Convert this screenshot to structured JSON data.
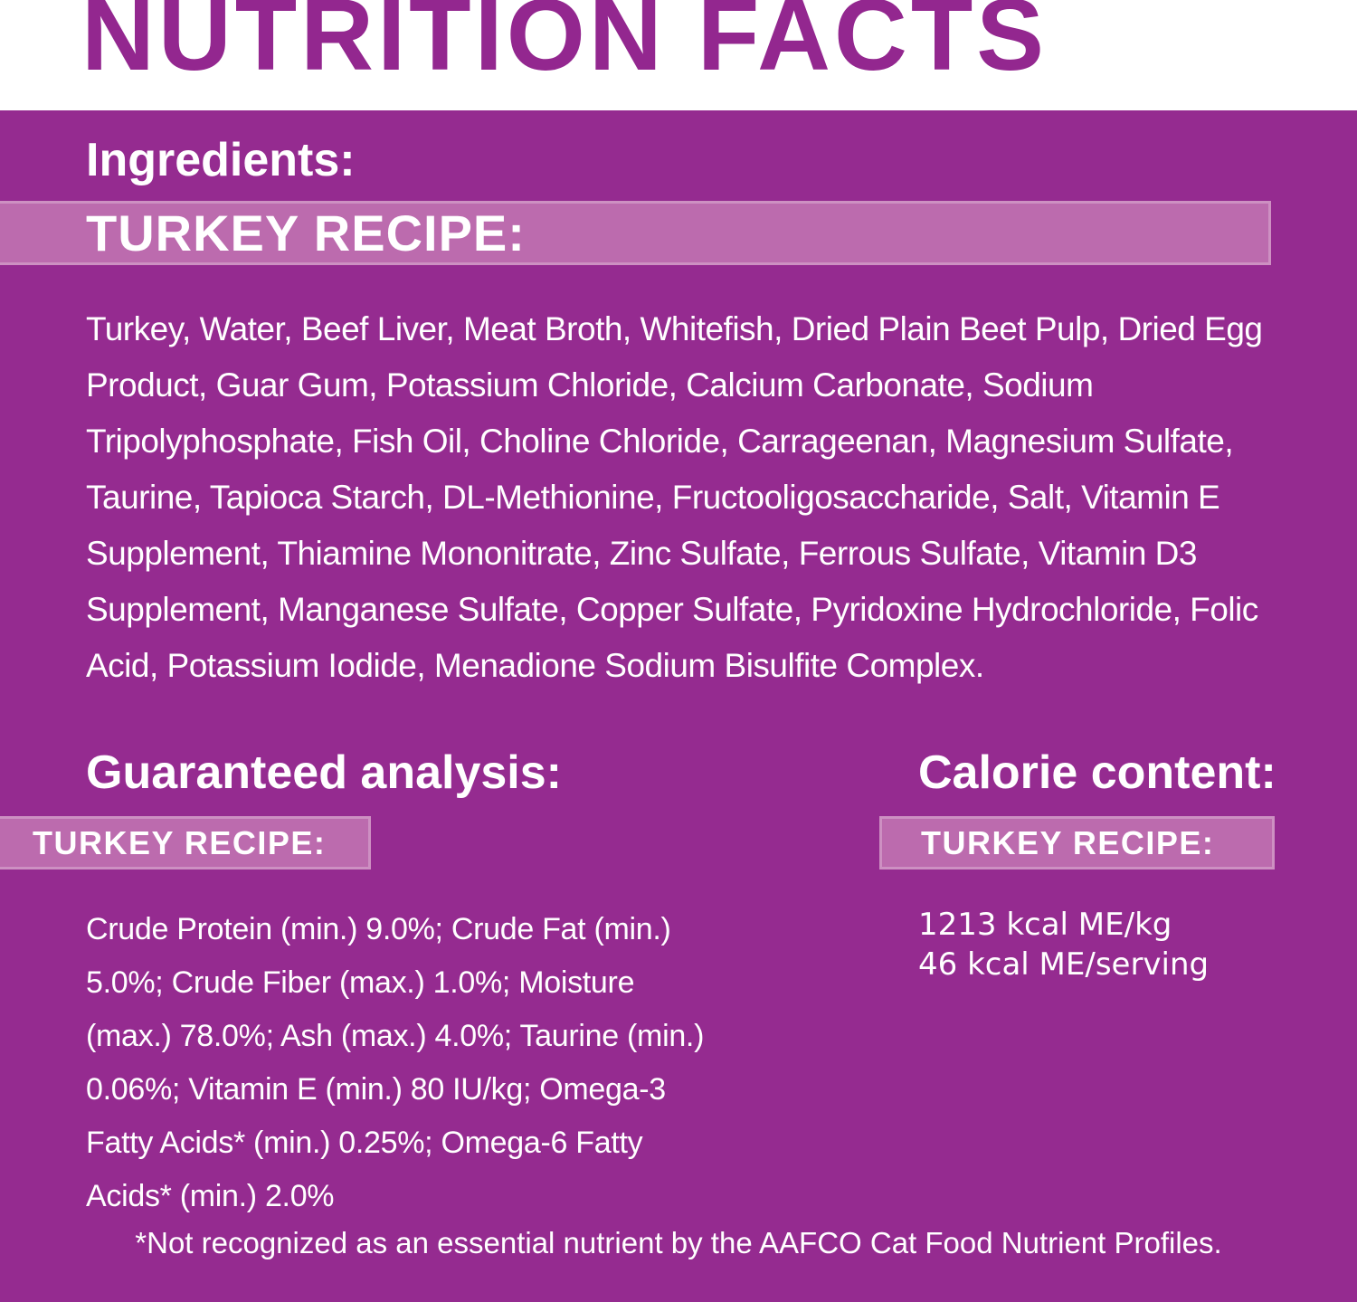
{
  "colors": {
    "background": "#952B90",
    "band": "#BC6BAE",
    "title": "#93278F",
    "text": "#FFFFFF"
  },
  "header": {
    "title": "NUTRITION FACTS"
  },
  "ingredients": {
    "heading": "Ingredients:",
    "recipe_label": "TURKEY RECIPE:",
    "text": "Turkey, Water, Beef Liver, Meat Broth, Whitefish, Dried Plain Beet Pulp, Dried Egg Product, Guar Gum, Potassium Chloride, Calcium Carbonate, Sodium Tripolyphosphate, Fish Oil, Choline Chloride, Carrageenan, Magnesium Sulfate, Taurine, Tapioca Starch, DL-Methionine, Fructooligosaccharide, Salt, Vitamin E Supplement, Thiamine Mononitrate, Zinc Sulfate, Ferrous Sulfate, Vitamin D3 Supplement, Manganese Sulfate, Copper Sulfate, Pyridoxine Hydrochloride, Folic Acid, Potassium Iodide, Menadione Sodium Bisulfite Complex."
  },
  "guaranteed_analysis": {
    "heading": "Guaranteed analysis:",
    "recipe_label": "TURKEY RECIPE:",
    "text": "Crude Protein (min.) 9.0%; Crude Fat (min.) 5.0%; Crude Fiber (max.) 1.0%; Moisture (max.) 78.0%; Ash (max.) 4.0%; Taurine (min.) 0.06%; Vitamin E (min.) 80 IU/kg; Omega-3 Fatty Acids* (min.) 0.25%; Omega-6 Fatty Acids* (min.) 2.0%"
  },
  "calorie_content": {
    "heading": "Calorie content:",
    "recipe_label": "TURKEY RECIPE:",
    "line1": "1213 kcal ME/kg",
    "line2": "46 kcal ME/serving"
  },
  "footnote": "*Not recognized as an essential nutrient by the AAFCO Cat Food Nutrient Profiles."
}
